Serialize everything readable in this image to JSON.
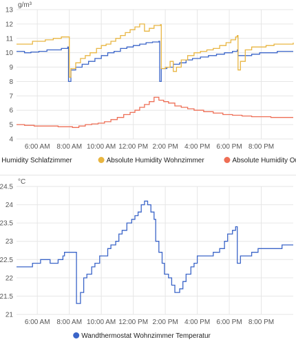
{
  "chart_data": [
    {
      "type": "line",
      "unit": "g/m³",
      "ylim": [
        4,
        13
      ],
      "yticks": [
        4,
        5,
        6,
        7,
        8,
        9,
        10,
        11,
        12,
        13
      ],
      "xlim": [
        4.7,
        22.0
      ],
      "xticks": [
        6,
        8,
        10,
        12,
        14,
        16,
        18,
        20
      ],
      "xtick_labels": [
        "6:00 AM",
        "8:00 AM",
        "10:00 AM",
        "12:00 PM",
        "2:00 PM",
        "4:00 PM",
        "6:00 PM",
        "8:00 PM"
      ],
      "grid": true,
      "legend_position": "bottom",
      "series": [
        {
          "name": "Absolute Humidity Schlafzimmer",
          "color": "#3a64c8",
          "step": true,
          "points": [
            [
              4.7,
              10.1
            ],
            [
              5.2,
              10.0
            ],
            [
              5.6,
              10.05
            ],
            [
              6.1,
              10.1
            ],
            [
              6.6,
              10.2
            ],
            [
              7.1,
              10.2
            ],
            [
              7.5,
              10.3
            ],
            [
              7.9,
              10.4
            ],
            [
              7.95,
              8.0
            ],
            [
              8.1,
              8.8
            ],
            [
              8.4,
              9.0
            ],
            [
              8.8,
              9.2
            ],
            [
              9.2,
              9.4
            ],
            [
              9.6,
              9.6
            ],
            [
              10.0,
              9.8
            ],
            [
              10.4,
              10.0
            ],
            [
              10.8,
              10.1
            ],
            [
              11.2,
              10.3
            ],
            [
              11.6,
              10.4
            ],
            [
              12.0,
              10.5
            ],
            [
              12.4,
              10.6
            ],
            [
              12.8,
              10.7
            ],
            [
              13.2,
              10.75
            ],
            [
              13.6,
              10.8
            ],
            [
              13.65,
              8.0
            ],
            [
              13.75,
              8.9
            ],
            [
              14.1,
              9.0
            ],
            [
              14.5,
              9.2
            ],
            [
              14.9,
              9.3
            ],
            [
              15.3,
              9.5
            ],
            [
              15.7,
              9.6
            ],
            [
              16.2,
              9.7
            ],
            [
              16.7,
              9.8
            ],
            [
              17.2,
              9.9
            ],
            [
              17.7,
              10.0
            ],
            [
              18.2,
              10.1
            ],
            [
              18.5,
              10.2
            ],
            [
              18.55,
              9.8
            ],
            [
              18.9,
              9.8
            ],
            [
              19.4,
              9.9
            ],
            [
              19.9,
              10.0
            ],
            [
              20.4,
              10.0
            ],
            [
              21.0,
              10.1
            ],
            [
              21.5,
              10.1
            ],
            [
              22.0,
              10.1
            ]
          ]
        },
        {
          "name": "Absolute Humidity Wohnzimmer",
          "color": "#e8b540",
          "step": true,
          "points": [
            [
              4.7,
              10.6
            ],
            [
              5.2,
              10.6
            ],
            [
              5.7,
              10.8
            ],
            [
              6.1,
              10.8
            ],
            [
              6.5,
              10.9
            ],
            [
              7.0,
              11.0
            ],
            [
              7.5,
              11.1
            ],
            [
              7.9,
              11.1
            ],
            [
              8.0,
              8.3
            ],
            [
              8.1,
              8.9
            ],
            [
              8.4,
              9.3
            ],
            [
              8.7,
              9.6
            ],
            [
              9.0,
              9.8
            ],
            [
              9.3,
              10.0
            ],
            [
              9.7,
              10.3
            ],
            [
              10.0,
              10.5
            ],
            [
              10.3,
              10.6
            ],
            [
              10.6,
              10.8
            ],
            [
              10.9,
              11.0
            ],
            [
              11.2,
              11.2
            ],
            [
              11.5,
              11.4
            ],
            [
              11.8,
              11.6
            ],
            [
              12.1,
              11.8
            ],
            [
              12.4,
              12.0
            ],
            [
              12.7,
              11.5
            ],
            [
              13.0,
              11.7
            ],
            [
              13.3,
              11.9
            ],
            [
              13.7,
              11.95
            ],
            [
              13.75,
              8.9
            ],
            [
              14.0,
              9.0
            ],
            [
              14.3,
              9.4
            ],
            [
              14.5,
              8.7
            ],
            [
              14.7,
              9.0
            ],
            [
              15.0,
              9.5
            ],
            [
              15.4,
              9.8
            ],
            [
              15.8,
              10.0
            ],
            [
              16.2,
              10.1
            ],
            [
              16.6,
              10.2
            ],
            [
              17.0,
              10.3
            ],
            [
              17.4,
              10.5
            ],
            [
              17.8,
              10.7
            ],
            [
              18.1,
              10.9
            ],
            [
              18.4,
              11.1
            ],
            [
              18.5,
              11.2
            ],
            [
              18.55,
              8.8
            ],
            [
              18.7,
              9.4
            ],
            [
              19.0,
              10.2
            ],
            [
              19.4,
              10.4
            ],
            [
              19.8,
              10.4
            ],
            [
              20.3,
              10.5
            ],
            [
              20.8,
              10.6
            ],
            [
              21.3,
              10.6
            ],
            [
              22.0,
              10.7
            ]
          ]
        },
        {
          "name": "Absolute Humidity Outside",
          "color": "#ee6e55",
          "step": true,
          "points": [
            [
              4.7,
              5.0
            ],
            [
              5.2,
              4.95
            ],
            [
              5.8,
              4.9
            ],
            [
              6.3,
              4.9
            ],
            [
              6.8,
              4.9
            ],
            [
              7.3,
              4.85
            ],
            [
              7.8,
              4.85
            ],
            [
              8.2,
              4.8
            ],
            [
              8.6,
              4.9
            ],
            [
              9.0,
              5.0
            ],
            [
              9.4,
              5.05
            ],
            [
              9.8,
              5.1
            ],
            [
              10.2,
              5.2
            ],
            [
              10.6,
              5.35
            ],
            [
              11.0,
              5.5
            ],
            [
              11.4,
              5.7
            ],
            [
              11.8,
              5.85
            ],
            [
              12.1,
              6.0
            ],
            [
              12.4,
              6.2
            ],
            [
              12.7,
              6.4
            ],
            [
              13.0,
              6.6
            ],
            [
              13.3,
              6.9
            ],
            [
              13.6,
              6.7
            ],
            [
              13.9,
              6.6
            ],
            [
              14.2,
              6.5
            ],
            [
              14.6,
              6.3
            ],
            [
              15.0,
              6.2
            ],
            [
              15.4,
              6.1
            ],
            [
              15.8,
              6.0
            ],
            [
              16.4,
              5.9
            ],
            [
              17.0,
              5.8
            ],
            [
              17.6,
              5.7
            ],
            [
              18.2,
              5.65
            ],
            [
              18.8,
              5.6
            ],
            [
              19.4,
              5.55
            ],
            [
              20.0,
              5.55
            ],
            [
              20.6,
              5.5
            ],
            [
              21.2,
              5.5
            ],
            [
              22.0,
              5.5
            ]
          ]
        }
      ]
    },
    {
      "type": "line",
      "unit": "°C",
      "ylim": [
        21,
        24.5
      ],
      "yticks": [
        21,
        21.5,
        22,
        22.5,
        23,
        23.5,
        24,
        24.5
      ],
      "ytick_labels": [
        "21",
        "21.5",
        "22",
        "22.5",
        "23",
        "23.5",
        "24",
        "24.5"
      ],
      "xlim": [
        4.7,
        22.0
      ],
      "xticks": [
        6,
        8,
        10,
        12,
        14,
        16,
        18,
        20
      ],
      "xtick_labels": [
        "6:00 AM",
        "8:00 AM",
        "10:00 AM",
        "12:00 PM",
        "2:00 PM",
        "4:00 PM",
        "6:00 PM",
        "8:00 PM"
      ],
      "grid": true,
      "legend_position": "bottom",
      "series": [
        {
          "name": "Wandthermostat Wohnzimmer Temperatur",
          "color": "#3a64c8",
          "step": true,
          "points": [
            [
              4.7,
              22.3
            ],
            [
              5.3,
              22.3
            ],
            [
              5.7,
              22.4
            ],
            [
              6.2,
              22.5
            ],
            [
              6.8,
              22.4
            ],
            [
              7.3,
              22.5
            ],
            [
              7.6,
              22.6
            ],
            [
              7.7,
              22.7
            ],
            [
              8.3,
              22.7
            ],
            [
              8.45,
              21.3
            ],
            [
              8.7,
              21.6
            ],
            [
              8.9,
              22.0
            ],
            [
              9.1,
              22.1
            ],
            [
              9.4,
              22.3
            ],
            [
              9.6,
              22.4
            ],
            [
              9.9,
              22.6
            ],
            [
              10.2,
              22.6
            ],
            [
              10.4,
              22.8
            ],
            [
              10.6,
              22.9
            ],
            [
              10.9,
              23.0
            ],
            [
              11.1,
              23.2
            ],
            [
              11.3,
              23.3
            ],
            [
              11.6,
              23.5
            ],
            [
              11.9,
              23.6
            ],
            [
              12.1,
              23.7
            ],
            [
              12.3,
              23.8
            ],
            [
              12.5,
              24.0
            ],
            [
              12.7,
              24.1
            ],
            [
              12.9,
              24.0
            ],
            [
              13.1,
              23.8
            ],
            [
              13.3,
              23.6
            ],
            [
              13.4,
              23.0
            ],
            [
              13.6,
              22.7
            ],
            [
              13.8,
              22.4
            ],
            [
              13.95,
              22.1
            ],
            [
              14.2,
              22.0
            ],
            [
              14.4,
              21.8
            ],
            [
              14.6,
              21.6
            ],
            [
              14.9,
              21.7
            ],
            [
              15.1,
              21.9
            ],
            [
              15.3,
              22.1
            ],
            [
              15.6,
              22.3
            ],
            [
              15.8,
              22.4
            ],
            [
              16.0,
              22.6
            ],
            [
              16.5,
              22.6
            ],
            [
              17.0,
              22.7
            ],
            [
              17.4,
              22.8
            ],
            [
              17.7,
              23.0
            ],
            [
              17.9,
              23.2
            ],
            [
              18.2,
              23.3
            ],
            [
              18.4,
              23.4
            ],
            [
              18.5,
              22.4
            ],
            [
              18.7,
              22.6
            ],
            [
              19.0,
              22.6
            ],
            [
              19.4,
              22.7
            ],
            [
              19.8,
              22.8
            ],
            [
              20.3,
              22.8
            ],
            [
              20.8,
              22.8
            ],
            [
              21.3,
              22.9
            ],
            [
              22.0,
              22.9
            ]
          ]
        }
      ]
    }
  ]
}
